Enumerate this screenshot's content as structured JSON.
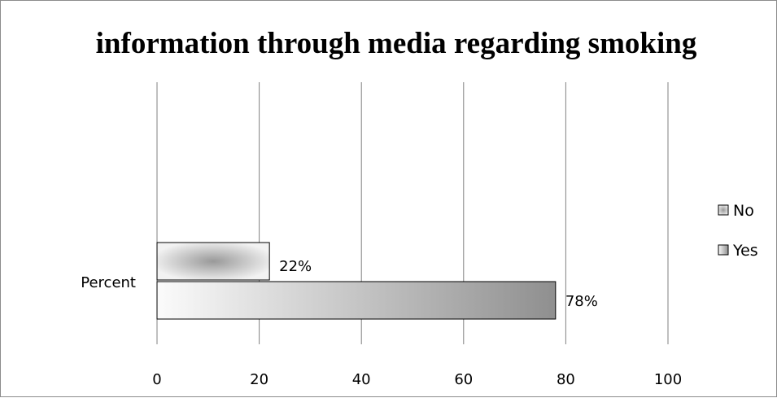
{
  "chart_data": {
    "type": "bar",
    "orientation": "horizontal",
    "title": "information through media regarding smoking",
    "categories": [
      "Percent"
    ],
    "series": [
      {
        "name": "No",
        "values": [
          22
        ],
        "data_labels": [
          "22%"
        ]
      },
      {
        "name": "Yes",
        "values": [
          78
        ],
        "data_labels": [
          "78%"
        ]
      }
    ],
    "xlim": [
      0,
      100
    ],
    "x_ticks": [
      "0",
      "20",
      "40",
      "60",
      "80",
      "100"
    ],
    "xlabel": "",
    "ylabel": "",
    "grid": "vertical",
    "legend": "right",
    "colors": {
      "no_center": "#999999",
      "no_edge": "#f2f2f2",
      "yes_start": "#fbfbfb",
      "yes_end": "#8f8f8f",
      "gridline": "#808080",
      "bar_border": "#000000"
    }
  }
}
